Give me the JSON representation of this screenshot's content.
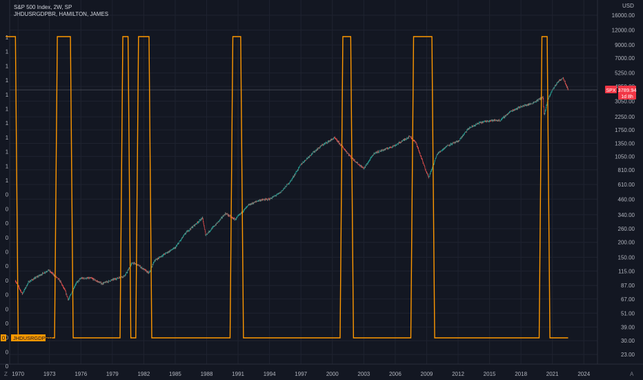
{
  "header": {
    "symbol_title": "S&P 500 Index, 2W, SP",
    "indicator_title": "JHDUSRGDPBR, HAMILTON, JAMES"
  },
  "axis": {
    "currency": "USD"
  },
  "corner_left": "Z",
  "corner_right": "A",
  "price_tag": {
    "symbol": "SPX",
    "price": "3789.94",
    "countdown": "1d 8h"
  },
  "indicator_tag": {
    "value": "0",
    "name": "JHDUSRGDPBR"
  },
  "colors": {
    "background": "#131722",
    "grid": "#1f2330",
    "indicator": "#ff9800",
    "price_tag": "#f23645",
    "candle_up": "#26a69a",
    "candle_down": "#ef5350"
  },
  "chart_data": {
    "type": "line",
    "x_ticks": [
      "1970",
      "1973",
      "1976",
      "1979",
      "1982",
      "1985",
      "1988",
      "1991",
      "1994",
      "1997",
      "2000",
      "2003",
      "2006",
      "2009",
      "2012",
      "2015",
      "2018",
      "2021",
      "2024"
    ],
    "x_range": [
      1969.2,
      2025.3
    ],
    "y_scale": "log",
    "y_ticks": [
      "16000.00",
      "12000.00",
      "9000.00",
      "7000.00",
      "5250.00",
      "4050.00",
      "3050.00",
      "2250.00",
      "1750.00",
      "1350.00",
      "1050.00",
      "810.00",
      "610.00",
      "460.00",
      "340.00",
      "260.00",
      "200.00",
      "150.00",
      "115.00",
      "87.00",
      "67.00",
      "51.00",
      "39.00",
      "30.00",
      "23.00"
    ],
    "left_axis_ticks": [
      "1",
      "1",
      "1",
      "1",
      "1",
      "1",
      "1",
      "1",
      "1",
      "1",
      "1",
      "0",
      "0",
      "0",
      "0",
      "0",
      "0",
      "0",
      "0",
      "0",
      "0",
      "0",
      "0",
      "0",
      "-"
    ],
    "series": [
      {
        "name": "JHDUSRGDPBR",
        "kind": "step",
        "recessions": [
          [
            1969.75,
            1970.75
          ],
          [
            1973.75,
            1975.0
          ],
          [
            1980.0,
            1980.5
          ],
          [
            1981.5,
            1982.5
          ],
          [
            1990.5,
            1991.25
          ],
          [
            2001.0,
            2001.75
          ],
          [
            2007.75,
            2009.5
          ],
          [
            2020.0,
            2020.5
          ]
        ],
        "start": 1969.75,
        "end": 2022.5
      },
      {
        "name": "SPX",
        "kind": "candles",
        "points": [
          [
            1969.75,
            95
          ],
          [
            1970.4,
            74
          ],
          [
            1971.0,
            93
          ],
          [
            1972.0,
            105
          ],
          [
            1972.9,
            117
          ],
          [
            1973.5,
            105
          ],
          [
            1974.0,
            95
          ],
          [
            1974.5,
            78
          ],
          [
            1974.8,
            66
          ],
          [
            1975.5,
            90
          ],
          [
            1976.0,
            100
          ],
          [
            1977.0,
            100
          ],
          [
            1978.0,
            90
          ],
          [
            1979.0,
            97
          ],
          [
            1980.2,
            105
          ],
          [
            1980.9,
            135
          ],
          [
            1981.5,
            128
          ],
          [
            1982.5,
            110
          ],
          [
            1983.0,
            140
          ],
          [
            1984.0,
            160
          ],
          [
            1985.0,
            180
          ],
          [
            1986.0,
            240
          ],
          [
            1987.6,
            320
          ],
          [
            1987.9,
            230
          ],
          [
            1989.0,
            290
          ],
          [
            1989.8,
            350
          ],
          [
            1990.7,
            310
          ],
          [
            1992.0,
            410
          ],
          [
            1993.0,
            450
          ],
          [
            1994.0,
            460
          ],
          [
            1995.0,
            520
          ],
          [
            1996.0,
            650
          ],
          [
            1997.0,
            900
          ],
          [
            1998.0,
            1100
          ],
          [
            1999.0,
            1300
          ],
          [
            2000.2,
            1500
          ],
          [
            2001.0,
            1250
          ],
          [
            2001.7,
            1050
          ],
          [
            2002.5,
            900
          ],
          [
            2003.0,
            830
          ],
          [
            2004.0,
            1120
          ],
          [
            2005.0,
            1200
          ],
          [
            2006.0,
            1300
          ],
          [
            2007.4,
            1550
          ],
          [
            2008.0,
            1350
          ],
          [
            2008.8,
            850
          ],
          [
            2009.2,
            700
          ],
          [
            2010.0,
            1100
          ],
          [
            2011.0,
            1300
          ],
          [
            2012.0,
            1400
          ],
          [
            2013.0,
            1800
          ],
          [
            2014.0,
            2000
          ],
          [
            2015.0,
            2100
          ],
          [
            2016.0,
            2100
          ],
          [
            2017.0,
            2500
          ],
          [
            2018.0,
            2750
          ],
          [
            2019.0,
            2900
          ],
          [
            2020.1,
            3300
          ],
          [
            2020.2,
            2300
          ],
          [
            2020.6,
            3200
          ],
          [
            2021.0,
            3800
          ],
          [
            2021.5,
            4400
          ],
          [
            2022.0,
            4800
          ],
          [
            2022.3,
            4200
          ],
          [
            2022.5,
            3789.94
          ]
        ]
      }
    ]
  }
}
